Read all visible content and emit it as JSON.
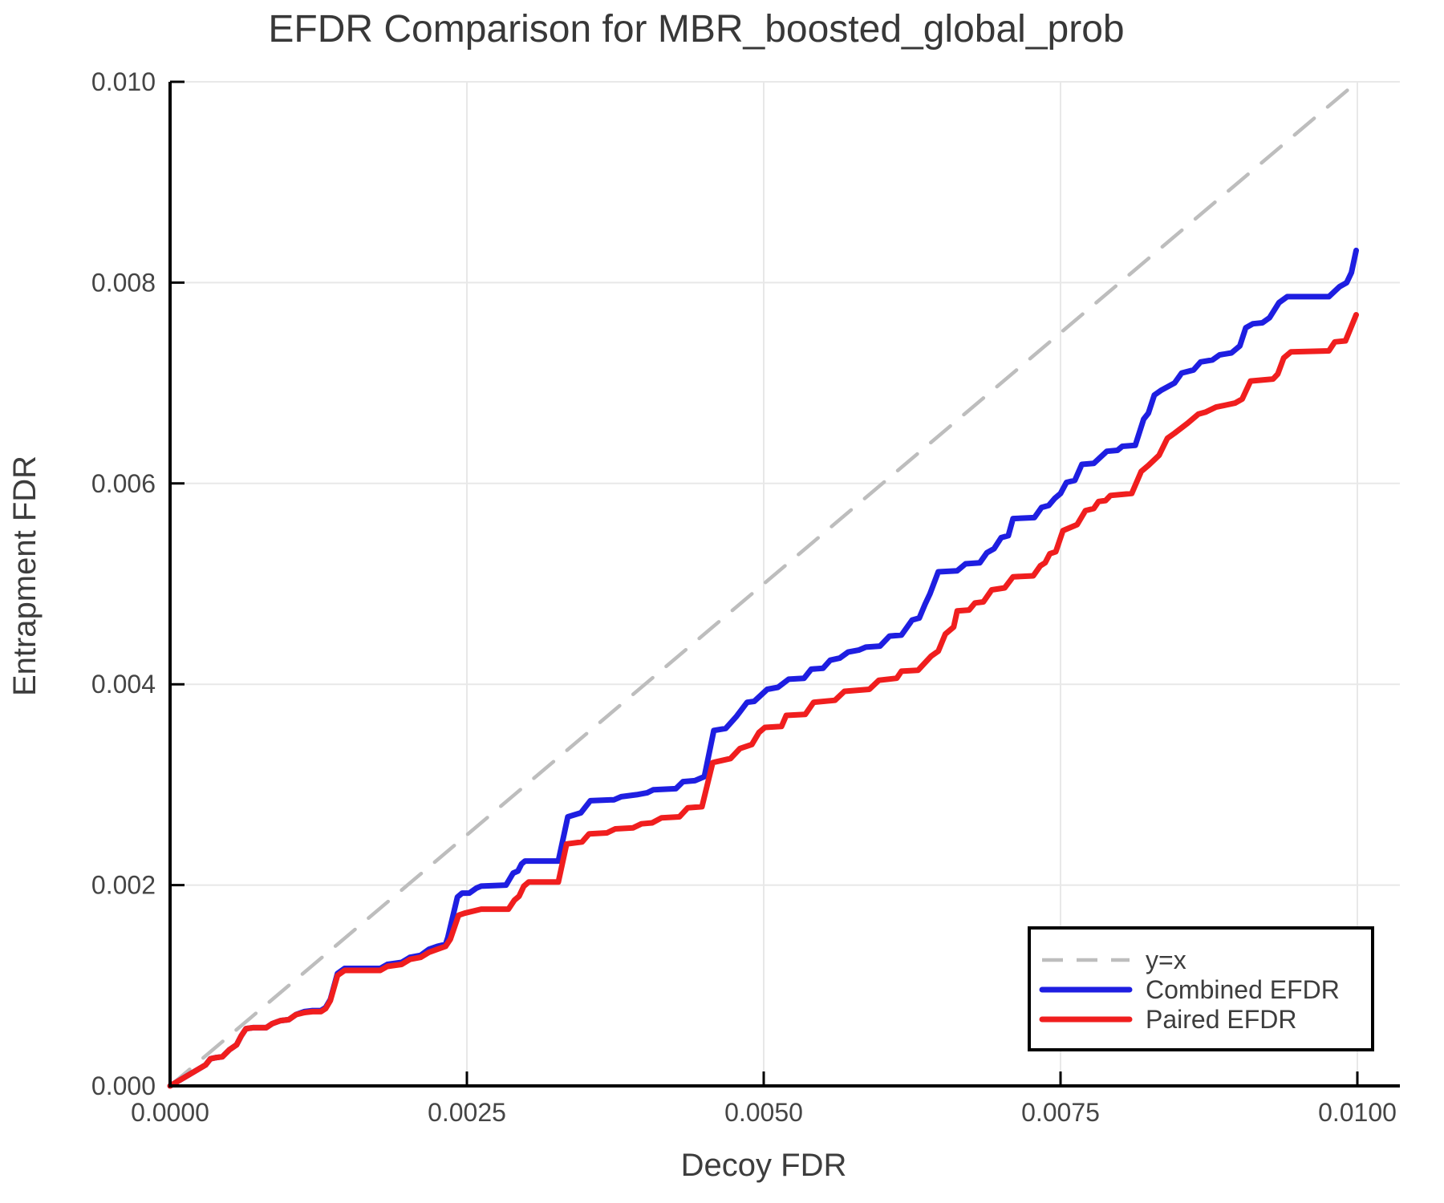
{
  "chart_data": {
    "type": "line",
    "title": "EFDR Comparison for MBR_boosted_global_prob",
    "xlabel": "Decoy FDR",
    "ylabel": "Entrapment FDR",
    "xlim": [
      0.0,
      0.010358
    ],
    "ylim": [
      0.0,
      0.01
    ],
    "grid": true,
    "xticks": {
      "values": [
        0.0,
        0.0025,
        0.005,
        0.0075,
        0.01
      ],
      "labels": [
        "0.0000",
        "0.0025",
        "0.0050",
        "0.0075",
        "0.0100"
      ]
    },
    "yticks": {
      "values": [
        0.0,
        0.002,
        0.004,
        0.006,
        0.008,
        0.01
      ],
      "labels": [
        "0.000",
        "0.002",
        "0.004",
        "0.006",
        "0.008",
        "0.010"
      ]
    },
    "legend": {
      "position": "lower right"
    },
    "colors": {
      "grid": "#e8e8e8",
      "axis": "#000000",
      "diagonal": "#bdbdbd",
      "combined": "#1e1ee1",
      "paired": "#f01e1e",
      "legend_border": "#000000",
      "text": "#3d3d3d"
    },
    "series": [
      {
        "name": "y=x",
        "color": "#bdbdbd",
        "style": "dashed",
        "width": 4.5,
        "points": [
          [
            0.0,
            0.0
          ],
          [
            0.01,
            0.01
          ]
        ]
      },
      {
        "name": "Combined EFDR",
        "color": "#1e1ee1",
        "style": "solid",
        "width": 7,
        "points": [
          [
            0.0,
            0.0
          ],
          [
            0.0003,
            0.00021
          ],
          [
            0.00034,
            0.00027
          ],
          [
            0.00038,
            0.00028
          ],
          [
            0.00044,
            0.00029
          ],
          [
            0.0005,
            0.00036
          ],
          [
            0.00056,
            0.00041
          ],
          [
            0.0006,
            0.0005
          ],
          [
            0.00064,
            0.00057
          ],
          [
            0.0007,
            0.00058
          ],
          [
            0.00081,
            0.00058
          ],
          [
            0.00086,
            0.00062
          ],
          [
            0.00093,
            0.00065
          ],
          [
            0.001,
            0.00066
          ],
          [
            0.00106,
            0.00071
          ],
          [
            0.00113,
            0.00074
          ],
          [
            0.0012,
            0.00075
          ],
          [
            0.00127,
            0.00075
          ],
          [
            0.00131,
            0.00078
          ],
          [
            0.00135,
            0.00086
          ],
          [
            0.00141,
            0.00112
          ],
          [
            0.00147,
            0.00117
          ],
          [
            0.00177,
            0.00117
          ],
          [
            0.00183,
            0.00121
          ],
          [
            0.00195,
            0.00123
          ],
          [
            0.00202,
            0.00128
          ],
          [
            0.00211,
            0.0013
          ],
          [
            0.00218,
            0.00136
          ],
          [
            0.00225,
            0.00139
          ],
          [
            0.00232,
            0.00141
          ],
          [
            0.00234,
            0.00148
          ],
          [
            0.00242,
            0.00188
          ],
          [
            0.00246,
            0.00192
          ],
          [
            0.00252,
            0.00192
          ],
          [
            0.00258,
            0.00197
          ],
          [
            0.00262,
            0.00199
          ],
          [
            0.00283,
            0.002
          ],
          [
            0.00289,
            0.00212
          ],
          [
            0.00293,
            0.00214
          ],
          [
            0.00296,
            0.00221
          ],
          [
            0.00299,
            0.00224
          ],
          [
            0.00327,
            0.00224
          ],
          [
            0.00335,
            0.00268
          ],
          [
            0.00346,
            0.00272
          ],
          [
            0.00354,
            0.00284
          ],
          [
            0.00374,
            0.00285
          ],
          [
            0.0038,
            0.00288
          ],
          [
            0.00393,
            0.0029
          ],
          [
            0.00402,
            0.00292
          ],
          [
            0.00407,
            0.00295
          ],
          [
            0.00426,
            0.00296
          ],
          [
            0.00432,
            0.00303
          ],
          [
            0.00442,
            0.00304
          ],
          [
            0.0045,
            0.00308
          ],
          [
            0.00458,
            0.00354
          ],
          [
            0.00468,
            0.00356
          ],
          [
            0.00477,
            0.00368
          ],
          [
            0.00486,
            0.00382
          ],
          [
            0.00492,
            0.00383
          ],
          [
            0.00503,
            0.00395
          ],
          [
            0.00512,
            0.00397
          ],
          [
            0.00521,
            0.00405
          ],
          [
            0.00534,
            0.00406
          ],
          [
            0.0054,
            0.00415
          ],
          [
            0.0055,
            0.00416
          ],
          [
            0.00556,
            0.00424
          ],
          [
            0.00564,
            0.00426
          ],
          [
            0.00571,
            0.00432
          ],
          [
            0.0058,
            0.00434
          ],
          [
            0.00586,
            0.00437
          ],
          [
            0.00598,
            0.00438
          ],
          [
            0.00606,
            0.00448
          ],
          [
            0.00616,
            0.00449
          ],
          [
            0.00625,
            0.00464
          ],
          [
            0.00631,
            0.00466
          ],
          [
            0.00636,
            0.0048
          ],
          [
            0.0064,
            0.0049
          ],
          [
            0.00647,
            0.00512
          ],
          [
            0.00663,
            0.00513
          ],
          [
            0.0067,
            0.0052
          ],
          [
            0.00682,
            0.00521
          ],
          [
            0.00688,
            0.00531
          ],
          [
            0.00694,
            0.00535
          ],
          [
            0.007,
            0.00546
          ],
          [
            0.00706,
            0.00548
          ],
          [
            0.0071,
            0.00565
          ],
          [
            0.00728,
            0.00566
          ],
          [
            0.00734,
            0.00576
          ],
          [
            0.0074,
            0.00578
          ],
          [
            0.00745,
            0.00585
          ],
          [
            0.0075,
            0.0059
          ],
          [
            0.00755,
            0.00601
          ],
          [
            0.00762,
            0.00603
          ],
          [
            0.00768,
            0.00619
          ],
          [
            0.00778,
            0.0062
          ],
          [
            0.00789,
            0.00632
          ],
          [
            0.00798,
            0.00633
          ],
          [
            0.00802,
            0.00637
          ],
          [
            0.00813,
            0.00638
          ],
          [
            0.0082,
            0.00664
          ],
          [
            0.00824,
            0.0067
          ],
          [
            0.00829,
            0.00688
          ],
          [
            0.00835,
            0.00693
          ],
          [
            0.00846,
            0.007
          ],
          [
            0.00852,
            0.0071
          ],
          [
            0.00862,
            0.00713
          ],
          [
            0.00868,
            0.00721
          ],
          [
            0.00878,
            0.00723
          ],
          [
            0.00884,
            0.00728
          ],
          [
            0.00894,
            0.0073
          ],
          [
            0.00901,
            0.00737
          ],
          [
            0.00906,
            0.00755
          ],
          [
            0.00912,
            0.00759
          ],
          [
            0.0092,
            0.0076
          ],
          [
            0.00926,
            0.00765
          ],
          [
            0.00934,
            0.0078
          ],
          [
            0.00941,
            0.00786
          ],
          [
            0.00976,
            0.00786
          ],
          [
            0.00985,
            0.00796
          ],
          [
            0.00991,
            0.008
          ],
          [
            0.00995,
            0.0081
          ],
          [
            0.00999,
            0.00832
          ]
        ]
      },
      {
        "name": "Paired EFDR",
        "color": "#f01e1e",
        "style": "solid",
        "width": 7,
        "points": [
          [
            0.0,
            0.0
          ],
          [
            0.0003,
            0.00021
          ],
          [
            0.00034,
            0.00027
          ],
          [
            0.00038,
            0.00028
          ],
          [
            0.00044,
            0.00029
          ],
          [
            0.0005,
            0.00036
          ],
          [
            0.00056,
            0.00041
          ],
          [
            0.0006,
            0.0005
          ],
          [
            0.00064,
            0.00057
          ],
          [
            0.0007,
            0.00058
          ],
          [
            0.00081,
            0.00058
          ],
          [
            0.00086,
            0.00062
          ],
          [
            0.00093,
            0.00065
          ],
          [
            0.001,
            0.00066
          ],
          [
            0.00106,
            0.00071
          ],
          [
            0.00113,
            0.00073
          ],
          [
            0.0012,
            0.00074
          ],
          [
            0.00127,
            0.00074
          ],
          [
            0.00131,
            0.00077
          ],
          [
            0.00135,
            0.00085
          ],
          [
            0.00141,
            0.0011
          ],
          [
            0.00147,
            0.00115
          ],
          [
            0.00177,
            0.00115
          ],
          [
            0.00183,
            0.00119
          ],
          [
            0.00195,
            0.00121
          ],
          [
            0.00202,
            0.00126
          ],
          [
            0.00211,
            0.00128
          ],
          [
            0.00218,
            0.00133
          ],
          [
            0.00225,
            0.00136
          ],
          [
            0.00232,
            0.00139
          ],
          [
            0.00236,
            0.00146
          ],
          [
            0.00243,
            0.0017
          ],
          [
            0.00248,
            0.00172
          ],
          [
            0.00262,
            0.00176
          ],
          [
            0.00285,
            0.00176
          ],
          [
            0.0029,
            0.00185
          ],
          [
            0.00294,
            0.00189
          ],
          [
            0.00298,
            0.00199
          ],
          [
            0.00302,
            0.00203
          ],
          [
            0.00327,
            0.00203
          ],
          [
            0.00334,
            0.00241
          ],
          [
            0.00347,
            0.00243
          ],
          [
            0.00353,
            0.00251
          ],
          [
            0.00368,
            0.00252
          ],
          [
            0.00375,
            0.00256
          ],
          [
            0.0039,
            0.00257
          ],
          [
            0.00397,
            0.00261
          ],
          [
            0.00406,
            0.00262
          ],
          [
            0.00414,
            0.00267
          ],
          [
            0.00429,
            0.00268
          ],
          [
            0.00436,
            0.00277
          ],
          [
            0.00448,
            0.00278
          ],
          [
            0.00457,
            0.00322
          ],
          [
            0.00472,
            0.00326
          ],
          [
            0.0048,
            0.00336
          ],
          [
            0.0049,
            0.0034
          ],
          [
            0.00496,
            0.00352
          ],
          [
            0.00501,
            0.00357
          ],
          [
            0.00515,
            0.00358
          ],
          [
            0.00519,
            0.00369
          ],
          [
            0.00535,
            0.0037
          ],
          [
            0.00542,
            0.00382
          ],
          [
            0.0056,
            0.00384
          ],
          [
            0.00568,
            0.00393
          ],
          [
            0.00589,
            0.00395
          ],
          [
            0.00597,
            0.00404
          ],
          [
            0.00612,
            0.00406
          ],
          [
            0.00616,
            0.00413
          ],
          [
            0.0063,
            0.00414
          ],
          [
            0.00641,
            0.00428
          ],
          [
            0.00647,
            0.00433
          ],
          [
            0.00653,
            0.0045
          ],
          [
            0.0066,
            0.00457
          ],
          [
            0.00663,
            0.00473
          ],
          [
            0.00673,
            0.00474
          ],
          [
            0.00678,
            0.00481
          ],
          [
            0.00685,
            0.00482
          ],
          [
            0.00692,
            0.00494
          ],
          [
            0.00703,
            0.00496
          ],
          [
            0.0071,
            0.00507
          ],
          [
            0.00727,
            0.00508
          ],
          [
            0.00733,
            0.00518
          ],
          [
            0.00737,
            0.00521
          ],
          [
            0.00741,
            0.0053
          ],
          [
            0.00746,
            0.00532
          ],
          [
            0.00752,
            0.00553
          ],
          [
            0.00764,
            0.00559
          ],
          [
            0.00771,
            0.00573
          ],
          [
            0.00778,
            0.00575
          ],
          [
            0.00782,
            0.00582
          ],
          [
            0.00788,
            0.00583
          ],
          [
            0.00792,
            0.00588
          ],
          [
            0.0081,
            0.0059
          ],
          [
            0.00818,
            0.00612
          ],
          [
            0.00824,
            0.00618
          ],
          [
            0.00833,
            0.00628
          ],
          [
            0.0084,
            0.00645
          ],
          [
            0.00846,
            0.0065
          ],
          [
            0.00857,
            0.0066
          ],
          [
            0.00866,
            0.00669
          ],
          [
            0.00872,
            0.00671
          ],
          [
            0.00881,
            0.00676
          ],
          [
            0.00897,
            0.0068
          ],
          [
            0.00903,
            0.00684
          ],
          [
            0.0091,
            0.00702
          ],
          [
            0.00929,
            0.00704
          ],
          [
            0.00933,
            0.00709
          ],
          [
            0.00938,
            0.00725
          ],
          [
            0.00944,
            0.00731
          ],
          [
            0.00976,
            0.00732
          ],
          [
            0.00981,
            0.00741
          ],
          [
            0.0099,
            0.00742
          ],
          [
            0.00999,
            0.00768
          ]
        ]
      }
    ]
  }
}
